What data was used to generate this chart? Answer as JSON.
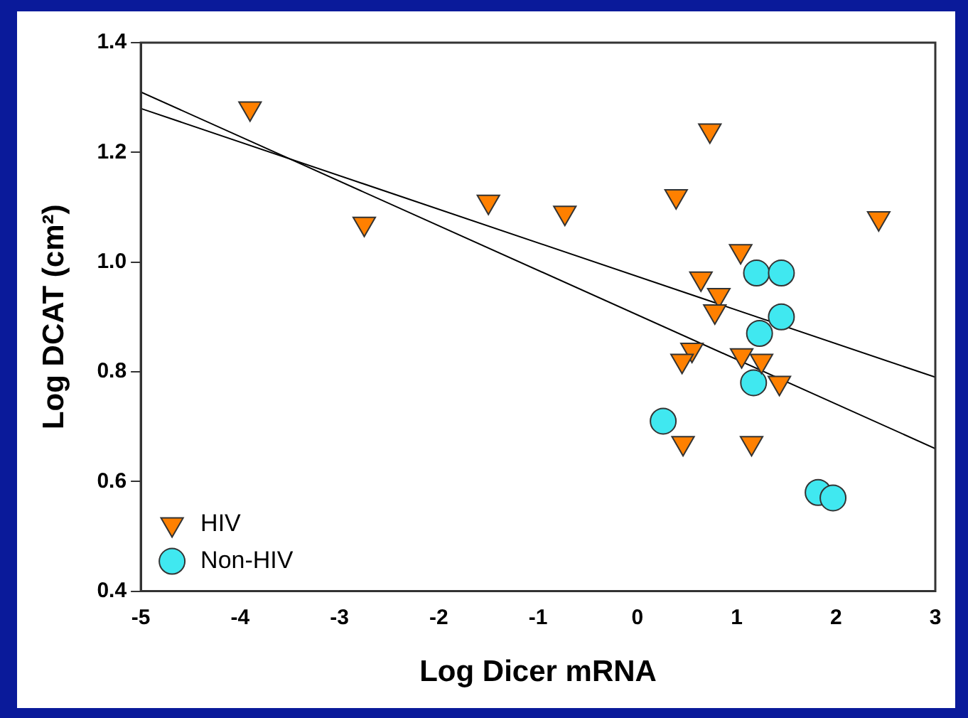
{
  "chart_data": {
    "type": "scatter",
    "xlabel": "Log Dicer mRNA",
    "ylabel": "Log DCAT (cm²)",
    "xlim": [
      -5,
      3
    ],
    "xticks": [
      -5,
      -4,
      -3,
      -2,
      -1,
      0,
      1,
      2,
      3
    ],
    "ylim": [
      0.4,
      1.4
    ],
    "yticks": [
      0.4,
      0.6,
      0.8,
      {
        "value": 1,
        "label": "1.0"
      },
      1.2,
      1.4
    ],
    "grid": false,
    "legend": "bottom left",
    "series": [
      {
        "name": "HIV",
        "color": "#ff8000",
        "marker": "triangle",
        "x": [
          -3.9,
          -2.75,
          -1.5,
          -0.73,
          0.39,
          0.73,
          2.43,
          1.04,
          0.64,
          0.82,
          0.78,
          0.55,
          0.45,
          1.05,
          1.25,
          1.43,
          0.46,
          1.15
        ],
        "values": [
          1.28,
          1.07,
          1.11,
          1.09,
          1.12,
          1.24,
          1.08,
          1.02,
          0.97,
          0.94,
          0.91,
          0.84,
          0.82,
          0.83,
          0.82,
          0.78,
          0.67,
          0.67
        ]
      },
      {
        "name": "Non-HIV",
        "color": "#40e8f0",
        "marker": "circle",
        "x": [
          1.2,
          1.45,
          1.45,
          1.23,
          1.17,
          0.26,
          1.82,
          1.97
        ],
        "values": [
          0.98,
          0.98,
          0.9,
          0.87,
          0.78,
          0.71,
          0.58,
          0.57
        ]
      },
      {
        "type": "line",
        "color": "#000000",
        "marker": "none",
        "x": [
          -5,
          3
        ],
        "values": [
          1.31,
          0.66
        ]
      },
      {
        "type": "line",
        "color": "#000000",
        "marker": "none",
        "x": [
          -5,
          3
        ],
        "values": [
          1.28,
          0.79
        ]
      }
    ]
  }
}
